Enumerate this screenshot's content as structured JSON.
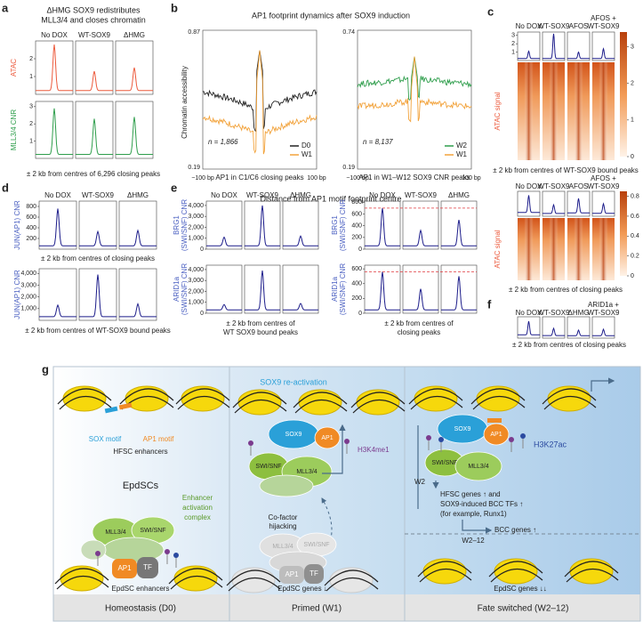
{
  "a": {
    "letter": "a",
    "title": [
      "ΔHMG SOX9 redistributes",
      "MLL3/4 and closes chromatin"
    ],
    "columns": [
      "No DOX",
      "WT-SOX9",
      "ΔHMG"
    ],
    "rows": [
      {
        "label": [
          "ATAC"
        ],
        "color": "#ec5a3c",
        "label_color": "#ec5a3c",
        "ylim": [
          0,
          3
        ],
        "yticks": [
          1,
          2
        ],
        "peaks": [
          2.8,
          1.3,
          1.5
        ]
      },
      {
        "label": [
          "MLL3/4 CNR"
        ],
        "color": "#2f9e4c",
        "label_color": "#2f9e4c",
        "ylim": [
          0,
          3.3
        ],
        "yticks": [
          1,
          2,
          3
        ],
        "peaks": [
          2.9,
          2.3,
          2.4
        ]
      }
    ],
    "footer": "± 2 kb from centres of 6,296 closing peaks"
  },
  "b": {
    "letter": "b",
    "title": "AP1 footprint dynamics after SOX9 induction",
    "ylabel": "Chromatin accessibility",
    "xlabel": "Distance from AP1 motif footprint centre",
    "plots": [
      {
        "ymax": "0.87",
        "ymin": "0.19",
        "n": "n = 1,866",
        "xmin": "−100 bp",
        "xmax": "100 bp",
        "xlabel": "AP1 in C1/C6 closing peaks",
        "legend": [
          {
            "name": "D0",
            "color": "#222222"
          },
          {
            "name": "W1",
            "color": "#f2a23a"
          }
        ]
      },
      {
        "ymax": "0.74",
        "ymin": "0.19",
        "n": "n = 8,137",
        "xmin": "−100 bp",
        "xmax": "100 bp",
        "xlabel": "AP1 in W1–W12 SOX9 CNR peaks",
        "legend": [
          {
            "name": "W2",
            "color": "#2f9e4c"
          },
          {
            "name": "W1",
            "color": "#f2a23a"
          }
        ]
      }
    ]
  },
  "c": {
    "letter": "c",
    "top": {
      "columns": [
        "No DOX",
        "WT-SOX9",
        "AFOS",
        [
          "AFOS +",
          "WT-SOX9"
        ]
      ],
      "profile": {
        "label": [],
        "color": "#1c1c8a",
        "label_color": "#1c1c8a",
        "ylim": [
          0,
          3.4
        ],
        "yticks": [
          1,
          2,
          3
        ],
        "peaks": [
          1.1,
          3.2,
          1.0,
          1.4
        ]
      },
      "heat_label": "ATAC signal",
      "cbar_lim": [
        0,
        3.4
      ],
      "cbar_ticks": [
        0,
        1,
        2,
        3
      ],
      "footer": "± 2 kb from centres of WT-SOX9 bound peaks"
    },
    "bottom": {
      "columns": [
        "No DOX",
        "WT-SOX9",
        "AFOS",
        [
          "AFOS +",
          "WT-SOX9"
        ]
      ],
      "heat_label": "ATAC signal",
      "cbar_lim": [
        0,
        0.85
      ],
      "cbar_ticks": [
        0,
        0.2,
        0.4,
        0.6,
        0.8
      ],
      "footer": "± 2 kb from centres of closing peaks"
    }
  },
  "d": {
    "letter": "d",
    "columns": [
      "No DOX",
      "WT-SOX9",
      "ΔHMG"
    ],
    "rows": [
      {
        "label": [
          "JUN(AP1) CNR"
        ],
        "color": "#1c1c8a",
        "label_color": "#4a5fc1",
        "ylim": [
          0,
          900
        ],
        "yticks": [
          200,
          400,
          600,
          800
        ],
        "peaks": [
          760,
          330,
          350
        ],
        "footer": "± 2 kb from centres of closing peaks"
      },
      {
        "label": [
          "JUN(AP1) CNR"
        ],
        "color": "#1c1c8a",
        "label_color": "#4a5fc1",
        "ylim": [
          0,
          4400
        ],
        "yticks": [
          {
            "value": 1000,
            "label": "1,000"
          },
          {
            "value": 2000,
            "label": "2,000"
          },
          {
            "value": 3000,
            "label": "3,000"
          },
          {
            "value": 4000,
            "label": "4,000"
          }
        ],
        "peaks": [
          1300,
          3900,
          1400
        ],
        "footer": "± 2 kb from centres of WT-SOX9 bound peaks"
      }
    ]
  },
  "e": {
    "letter": "e",
    "left": {
      "columns": [
        "No DOX",
        "WT-SOX9",
        "ΔHMG"
      ],
      "rows": [
        {
          "label": [
            "BRG1",
            "(SWI/SNF) CNR"
          ],
          "color": "#1c1c8a",
          "label_color": "#4a5fc1",
          "ylim": [
            0,
            4400
          ],
          "yticks": [
            0,
            {
              "value": 1000,
              "label": "1,000"
            },
            {
              "value": 2000,
              "label": "2,000"
            },
            {
              "value": 3000,
              "label": "3,000"
            },
            {
              "value": 4000,
              "label": "4,000"
            }
          ],
          "peaks": [
            1100,
            4000,
            1200
          ]
        },
        {
          "label": [
            "ARID1a",
            "(SWI/SNF) CNR"
          ],
          "color": "#1c1c8a",
          "label_color": "#4a5fc1",
          "ylim": [
            0,
            4400
          ],
          "yticks": [
            0,
            {
              "value": 1000,
              "label": "1,000"
            },
            {
              "value": 2000,
              "label": "2,000"
            },
            {
              "value": 3000,
              "label": "3,000"
            },
            {
              "value": 4000,
              "label": "4,000"
            }
          ],
          "peaks": [
            800,
            3900,
            900
          ]
        }
      ],
      "footer": [
        "± 2 kb from centres of",
        "WT SOX9 bound peaks"
      ]
    },
    "right": {
      "columns": [
        "No DOX",
        "WT-SOX9",
        "ΔHMG"
      ],
      "rows": [
        {
          "label": [
            "BRG1",
            "(SWI/SNF) CNR"
          ],
          "color": "#1c1c8a",
          "label_color": "#4a5fc1",
          "ylim": [
            0,
            820
          ],
          "yticks": [
            0,
            200,
            400,
            600,
            800
          ],
          "ref": 700,
          "peaks": [
            700,
            320,
            500
          ]
        },
        {
          "label": [
            "ARID1a",
            "(SWI/SNF) CNR"
          ],
          "color": "#1c1c8a",
          "label_color": "#4a5fc1",
          "ylim": [
            0,
            650
          ],
          "yticks": [
            0,
            200,
            400,
            600
          ],
          "ref": 560,
          "peaks": [
            560,
            330,
            500
          ]
        }
      ],
      "footer": [
        "± 2 kb from centres of",
        "closing peaks"
      ]
    }
  },
  "f": {
    "letter": "f",
    "columns": [
      "No DOX",
      "WT-SOX9",
      "ΔHMG",
      [
        "ARID1a +",
        "WT-SOX9"
      ]
    ],
    "footer": "± 2 kb from centres of closing peaks"
  },
  "g": {
    "letter": "g",
    "p1": {
      "sox_motif": "SOX motif",
      "ap1_motif": "AP1 motif",
      "hfsc": "HFSC enhancers",
      "epdscs": "EpdSCs",
      "complex": [
        "Enhancer",
        "activation",
        "complex"
      ],
      "mll": "MLL3/4",
      "swi": "SWI/SNF",
      "ap1": "AP1",
      "tf": "TF",
      "enh": "EpdSC enhancers",
      "stage": "Homeostasis (D0)"
    },
    "p2": {
      "react": "SOX9 re-activation",
      "sox9": "SOX9",
      "ap1": "AP1",
      "mark": "H3K4me1",
      "swi": "SWI/SNF",
      "mll": "MLL3/4",
      "hijack": [
        "Co-factor",
        "hijacking"
      ],
      "ghost_mll": "MLL3/4",
      "ghost_swi": "SWI/SNF",
      "ghost_ap1": "AP1",
      "ghost_tf": "TF",
      "genes": "EpdSC genes ↓",
      "stage": "Primed (W1)"
    },
    "p3": {
      "sox9": "SOX9",
      "ap1": "AP1",
      "mark": "H3K27ac",
      "swi": "SWI/SNF",
      "mll": "MLL3/4",
      "w2": "W2",
      "hfsc": [
        "HFSC genes ↑ and",
        "SOX9-induced BCC TFs ↑",
        "(for example, Runx1)"
      ],
      "w212": "W2–12",
      "bcc": "BCC genes ↑",
      "genes": "EpdSC genes ↓↓",
      "stage": "Fate switched (W2–12)"
    }
  }
}
